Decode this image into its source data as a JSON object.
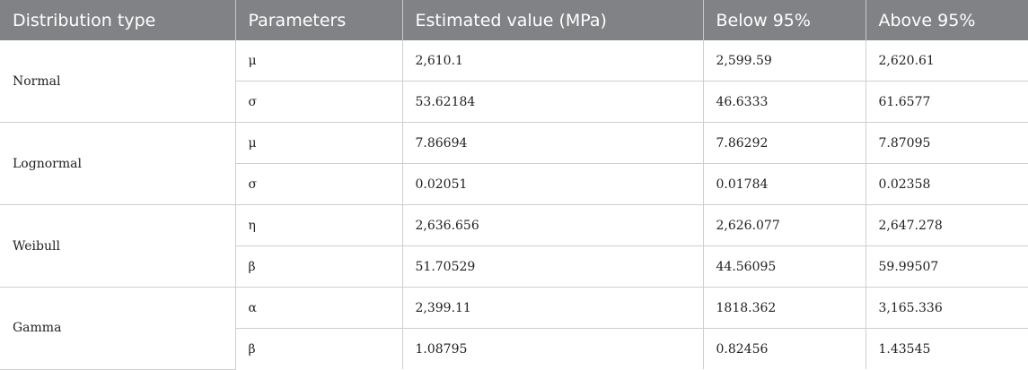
{
  "headers": [
    "Distribution type",
    "Parameters",
    "Estimated value (MPa)",
    "Below 95%",
    "Above 95%"
  ],
  "groups": [
    {
      "distribution": "Normal",
      "rows": [
        {
          "param": "μ",
          "estimate": "2,610.1",
          "below": "2,599.59",
          "above": "2,620.61"
        },
        {
          "param": "σ",
          "estimate": "53.62184",
          "below": "46.6333",
          "above": "61.6577"
        }
      ]
    },
    {
      "distribution": "Lognormal",
      "rows": [
        {
          "param": "μ",
          "estimate": "7.86694",
          "below": "7.86292",
          "above": "7.87095"
        },
        {
          "param": "σ",
          "estimate": "0.02051",
          "below": "0.01784",
          "above": "0.02358"
        }
      ]
    },
    {
      "distribution": "Weibull",
      "rows": [
        {
          "param": "η",
          "estimate": "2,636.656",
          "below": "2,626.077",
          "above": "2,647.278"
        },
        {
          "param": "β",
          "estimate": "51.70529",
          "below": "44.56095",
          "above": "59.99507"
        }
      ]
    },
    {
      "distribution": "Gamma",
      "rows": [
        {
          "param": "α",
          "estimate": "2,399.11",
          "below": "1818.362",
          "above": "3,165.336"
        },
        {
          "param": "β",
          "estimate": "1.08795",
          "below": "0.82456",
          "above": "1.43545"
        }
      ]
    }
  ]
}
